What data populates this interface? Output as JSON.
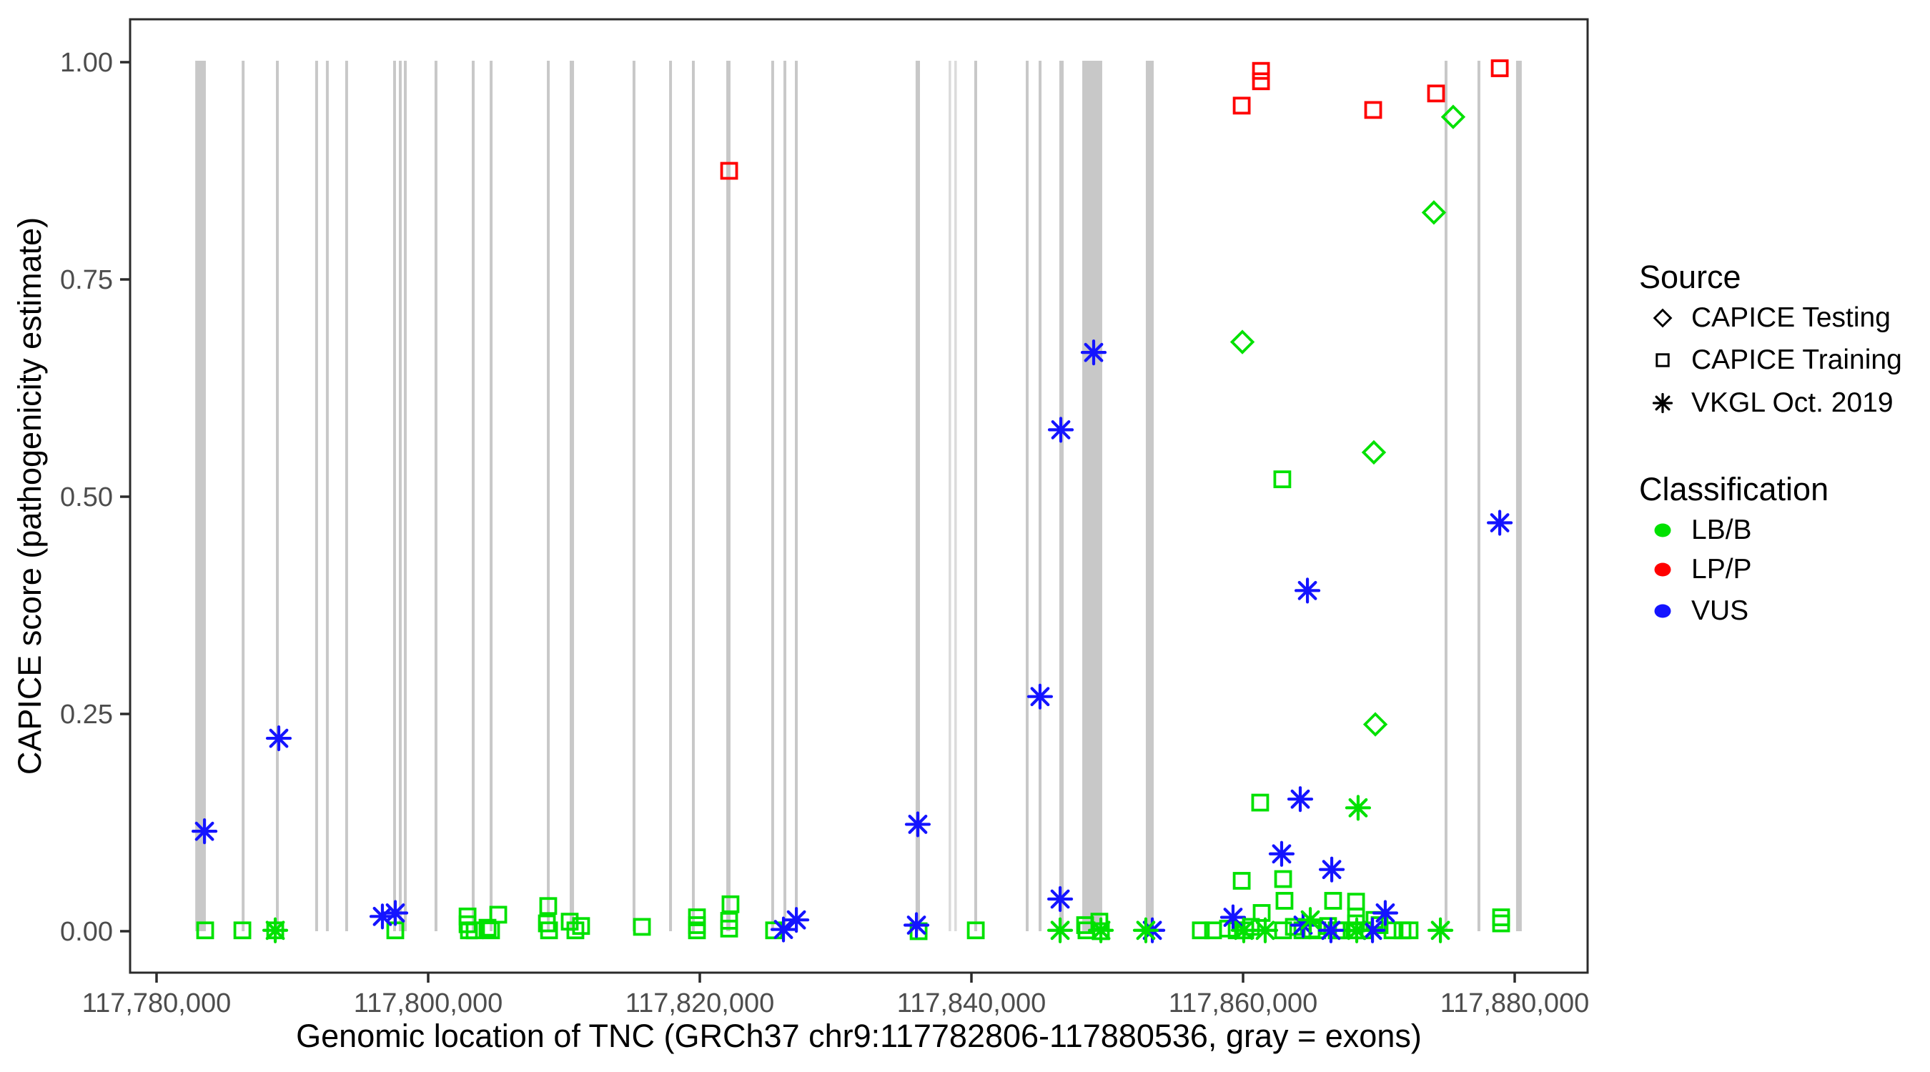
{
  "colors": {
    "lbb_green": "#00E100",
    "lpp_red": "#FF0000",
    "vus_blue": "#1414FF",
    "exon_gray": "#C8C8C8",
    "exon_gray_light": "#DBDBDB",
    "axis_line": "#2B2B2B",
    "tick_text": "#4D4D4D"
  },
  "legend": {
    "source": {
      "title": "Source",
      "items": [
        {
          "label": "CAPICE Testing",
          "marker": "diamond"
        },
        {
          "label": "CAPICE Training",
          "marker": "square"
        },
        {
          "label": "VKGL Oct. 2019",
          "marker": "asterisk"
        }
      ]
    },
    "classification": {
      "title": "Classification",
      "items": [
        {
          "label": "LB/B",
          "color": "#00E100"
        },
        {
          "label": "LP/P",
          "color": "#FF0000"
        },
        {
          "label": "VUS",
          "color": "#1414FF"
        }
      ]
    }
  },
  "chart_data": {
    "type": "scatter",
    "title": "",
    "xlabel": "Genomic location of TNC (GRCh37 chr9:117782806-117880536, gray = exons)",
    "ylabel": "CAPICE score (pathogenicity estimate)",
    "xlim": [
      117778050,
      117885400
    ],
    "ylim": [
      -0.048,
      1.05
    ],
    "grid": false,
    "x_ticks": [
      {
        "value": 117780000,
        "label": "117,780,000"
      },
      {
        "value": 117800000,
        "label": "117,800,000"
      },
      {
        "value": 117820000,
        "label": "117,820,000"
      },
      {
        "value": 117840000,
        "label": "117,840,000"
      },
      {
        "value": 117860000,
        "label": "117,860,000"
      },
      {
        "value": 117880000,
        "label": "117,880,000"
      }
    ],
    "y_ticks": [
      {
        "value": 0.0,
        "label": "0.00"
      },
      {
        "value": 0.25,
        "label": "0.25"
      },
      {
        "value": 0.5,
        "label": "0.50"
      },
      {
        "value": 0.75,
        "label": "0.75"
      },
      {
        "value": 1.0,
        "label": "1.00"
      }
    ],
    "exons_note": "gray vertical bands spanning score 0 to 1",
    "exons": [
      {
        "start": 117782850,
        "end": 117783630
      },
      {
        "start": 117786270,
        "end": 117786480
      },
      {
        "start": 117788790,
        "end": 117789000
      },
      {
        "start": 117791680,
        "end": 117791890
      },
      {
        "start": 117792470,
        "end": 117792680
      },
      {
        "start": 117793890,
        "end": 117794100
      },
      {
        "start": 117797420,
        "end": 117797630
      },
      {
        "start": 117797840,
        "end": 117798050
      },
      {
        "start": 117798210,
        "end": 117798420
      },
      {
        "start": 117800470,
        "end": 117800680
      },
      {
        "start": 117803210,
        "end": 117803420
      },
      {
        "start": 117804530,
        "end": 117804740
      },
      {
        "start": 117808740,
        "end": 117808950
      },
      {
        "start": 117810420,
        "end": 117810740
      },
      {
        "start": 117815050,
        "end": 117815260
      },
      {
        "start": 117817740,
        "end": 117817950
      },
      {
        "start": 117819420,
        "end": 117819630
      },
      {
        "start": 117821950,
        "end": 117822260
      },
      {
        "start": 117825260,
        "end": 117825470
      },
      {
        "start": 117826160,
        "end": 117826370
      },
      {
        "start": 117827000,
        "end": 117827210
      },
      {
        "start": 117835890,
        "end": 117836210
      },
      {
        "start": 117838320,
        "end": 117838430,
        "light": true
      },
      {
        "start": 117838740,
        "end": 117838850,
        "light": true
      },
      {
        "start": 117840210,
        "end": 117840420
      },
      {
        "start": 117844000,
        "end": 117844210
      },
      {
        "start": 117844950,
        "end": 117845160
      },
      {
        "start": 117846470,
        "end": 117846790
      },
      {
        "start": 117848160,
        "end": 117849630
      },
      {
        "start": 117852840,
        "end": 117853420
      },
      {
        "start": 117874840,
        "end": 117875050
      },
      {
        "start": 117877260,
        "end": 117877470
      },
      {
        "start": 117880100,
        "end": 117880520
      }
    ],
    "series": [
      {
        "name": "CAPICE Testing",
        "marker": "diamond",
        "points": [
          {
            "pos": 117859950,
            "score": 0.678,
            "class": "LB/B"
          },
          {
            "pos": 117869630,
            "score": 0.551,
            "class": "LB/B"
          },
          {
            "pos": 117869740,
            "score": 0.238,
            "class": "LB/B"
          },
          {
            "pos": 117874050,
            "score": 0.827,
            "class": "LB/B"
          },
          {
            "pos": 117875470,
            "score": 0.937,
            "class": "LB/B"
          }
        ]
      },
      {
        "name": "CAPICE Training",
        "marker": "square",
        "points": [
          {
            "pos": 117822160,
            "score": 0.875,
            "class": "LP/P"
          },
          {
            "pos": 117859900,
            "score": 0.95,
            "class": "LP/P"
          },
          {
            "pos": 117861320,
            "score": 0.99,
            "class": "LP/P"
          },
          {
            "pos": 117861320,
            "score": 0.978,
            "class": "LP/P"
          },
          {
            "pos": 117869580,
            "score": 0.945,
            "class": "LP/P"
          },
          {
            "pos": 117874210,
            "score": 0.964,
            "class": "LP/P"
          },
          {
            "pos": 117878900,
            "score": 0.993,
            "class": "LP/P"
          },
          {
            "pos": 117783580,
            "score": 0.001,
            "class": "LB/B"
          },
          {
            "pos": 117786320,
            "score": 0.001,
            "class": "LB/B"
          },
          {
            "pos": 117788740,
            "score": 0.001,
            "class": "LB/B"
          },
          {
            "pos": 117797580,
            "score": 0.001,
            "class": "LB/B"
          },
          {
            "pos": 117802900,
            "score": 0.017,
            "class": "LB/B"
          },
          {
            "pos": 117802900,
            "score": 0.008,
            "class": "LB/B"
          },
          {
            "pos": 117803000,
            "score": 0.001,
            "class": "LB/B"
          },
          {
            "pos": 117803420,
            "score": 0.001,
            "class": "LB/B"
          },
          {
            "pos": 117804370,
            "score": 0.004,
            "class": "LB/B"
          },
          {
            "pos": 117804630,
            "score": 0.001,
            "class": "LB/B"
          },
          {
            "pos": 117805160,
            "score": 0.019,
            "class": "LB/B"
          },
          {
            "pos": 117808840,
            "score": 0.029,
            "class": "LB/B"
          },
          {
            "pos": 117808740,
            "score": 0.009,
            "class": "LB/B"
          },
          {
            "pos": 117808900,
            "score": 0.001,
            "class": "LB/B"
          },
          {
            "pos": 117810420,
            "score": 0.011,
            "class": "LB/B"
          },
          {
            "pos": 117810840,
            "score": 0.001,
            "class": "LB/B"
          },
          {
            "pos": 117811260,
            "score": 0.006,
            "class": "LB/B"
          },
          {
            "pos": 117815740,
            "score": 0.005,
            "class": "LB/B"
          },
          {
            "pos": 117819790,
            "score": 0.016,
            "class": "LB/B"
          },
          {
            "pos": 117819790,
            "score": 0.007,
            "class": "LB/B"
          },
          {
            "pos": 117819790,
            "score": 0.001,
            "class": "LB/B"
          },
          {
            "pos": 117822260,
            "score": 0.031,
            "class": "LB/B"
          },
          {
            "pos": 117822160,
            "score": 0.012,
            "class": "LB/B"
          },
          {
            "pos": 117822160,
            "score": 0.003,
            "class": "LB/B"
          },
          {
            "pos": 117825470,
            "score": 0.001,
            "class": "LB/B"
          },
          {
            "pos": 117836110,
            "score": 0.0,
            "class": "LB/B"
          },
          {
            "pos": 117840320,
            "score": 0.001,
            "class": "LB/B"
          },
          {
            "pos": 117848370,
            "score": 0.007,
            "class": "LB/B"
          },
          {
            "pos": 117849420,
            "score": 0.011,
            "class": "LB/B"
          },
          {
            "pos": 117848470,
            "score": 0.001,
            "class": "LB/B"
          },
          {
            "pos": 117849530,
            "score": 0.0,
            "class": "LB/B"
          },
          {
            "pos": 117856890,
            "score": 0.001,
            "class": "LB/B"
          },
          {
            "pos": 117857790,
            "score": 0.001,
            "class": "LB/B"
          },
          {
            "pos": 117858890,
            "score": 0.003,
            "class": "LB/B"
          },
          {
            "pos": 117859530,
            "score": 0.001,
            "class": "LB/B"
          },
          {
            "pos": 117860160,
            "score": 0.001,
            "class": "LB/B"
          },
          {
            "pos": 117860580,
            "score": 0.005,
            "class": "LB/B"
          },
          {
            "pos": 117859900,
            "score": 0.058,
            "class": "LB/B"
          },
          {
            "pos": 117861260,
            "score": 0.148,
            "class": "LB/B"
          },
          {
            "pos": 117861370,
            "score": 0.021,
            "class": "LB/B"
          },
          {
            "pos": 117862890,
            "score": 0.52,
            "class": "LB/B"
          },
          {
            "pos": 117862950,
            "score": 0.06,
            "class": "LB/B"
          },
          {
            "pos": 117863050,
            "score": 0.035,
            "class": "LB/B"
          },
          {
            "pos": 117862950,
            "score": 0.001,
            "class": "LB/B"
          },
          {
            "pos": 117863740,
            "score": 0.005,
            "class": "LB/B"
          },
          {
            "pos": 117864370,
            "score": 0.001,
            "class": "LB/B"
          },
          {
            "pos": 117865050,
            "score": 0.002,
            "class": "LB/B"
          },
          {
            "pos": 117865470,
            "score": 0.001,
            "class": "LB/B"
          },
          {
            "pos": 117866260,
            "score": 0.006,
            "class": "LB/B"
          },
          {
            "pos": 117866890,
            "score": 0.001,
            "class": "LB/B"
          },
          {
            "pos": 117867260,
            "score": 0.001,
            "class": "LB/B"
          },
          {
            "pos": 117866630,
            "score": 0.035,
            "class": "LB/B"
          },
          {
            "pos": 117868320,
            "score": 0.034,
            "class": "LB/B"
          },
          {
            "pos": 117868320,
            "score": 0.017,
            "class": "LB/B"
          },
          {
            "pos": 117868320,
            "score": 0.009,
            "class": "LB/B"
          },
          {
            "pos": 117868210,
            "score": 0.001,
            "class": "LB/B"
          },
          {
            "pos": 117868890,
            "score": 0.001,
            "class": "LB/B"
          },
          {
            "pos": 117869680,
            "score": 0.013,
            "class": "LB/B"
          },
          {
            "pos": 117870050,
            "score": 0.007,
            "class": "LB/B"
          },
          {
            "pos": 117871000,
            "score": 0.001,
            "class": "LB/B"
          },
          {
            "pos": 117871740,
            "score": 0.001,
            "class": "LB/B"
          },
          {
            "pos": 117872260,
            "score": 0.001,
            "class": "LB/B"
          },
          {
            "pos": 117879000,
            "score": 0.016,
            "class": "LB/B"
          },
          {
            "pos": 117879000,
            "score": 0.009,
            "class": "LB/B"
          }
        ]
      },
      {
        "name": "VKGL Oct. 2019",
        "marker": "asterisk",
        "points": [
          {
            "pos": 117783530,
            "score": 0.115,
            "class": "VUS"
          },
          {
            "pos": 117789000,
            "score": 0.222,
            "class": "VUS"
          },
          {
            "pos": 117796630,
            "score": 0.017,
            "class": "VUS"
          },
          {
            "pos": 117797580,
            "score": 0.021,
            "class": "VUS"
          },
          {
            "pos": 117826160,
            "score": 0.002,
            "class": "VUS"
          },
          {
            "pos": 117827110,
            "score": 0.013,
            "class": "VUS"
          },
          {
            "pos": 117835950,
            "score": 0.007,
            "class": "VUS"
          },
          {
            "pos": 117836050,
            "score": 0.123,
            "class": "VUS"
          },
          {
            "pos": 117845050,
            "score": 0.27,
            "class": "VUS"
          },
          {
            "pos": 117846530,
            "score": 0.037,
            "class": "VUS"
          },
          {
            "pos": 117846580,
            "score": 0.577,
            "class": "VUS"
          },
          {
            "pos": 117849000,
            "score": 0.666,
            "class": "VUS"
          },
          {
            "pos": 117853320,
            "score": 0.001,
            "class": "VUS"
          },
          {
            "pos": 117859260,
            "score": 0.016,
            "class": "VUS"
          },
          {
            "pos": 117862840,
            "score": 0.089,
            "class": "VUS"
          },
          {
            "pos": 117864210,
            "score": 0.152,
            "class": "VUS"
          },
          {
            "pos": 117864420,
            "score": 0.007,
            "class": "VUS"
          },
          {
            "pos": 117864740,
            "score": 0.392,
            "class": "VUS"
          },
          {
            "pos": 117866470,
            "score": 0.001,
            "class": "VUS"
          },
          {
            "pos": 117866530,
            "score": 0.071,
            "class": "VUS"
          },
          {
            "pos": 117869530,
            "score": 0.001,
            "class": "VUS"
          },
          {
            "pos": 117870470,
            "score": 0.021,
            "class": "VUS"
          },
          {
            "pos": 117878900,
            "score": 0.47,
            "class": "VUS"
          },
          {
            "pos": 117788740,
            "score": 0.001,
            "class": "LB/B"
          },
          {
            "pos": 117846530,
            "score": 0.001,
            "class": "LB/B"
          },
          {
            "pos": 117849530,
            "score": 0.001,
            "class": "LB/B"
          },
          {
            "pos": 117852840,
            "score": 0.001,
            "class": "LB/B"
          },
          {
            "pos": 117860050,
            "score": 0.001,
            "class": "LB/B"
          },
          {
            "pos": 117861630,
            "score": 0.001,
            "class": "LB/B"
          },
          {
            "pos": 117864950,
            "score": 0.013,
            "class": "LB/B"
          },
          {
            "pos": 117868370,
            "score": 0.001,
            "class": "LB/B"
          },
          {
            "pos": 117868470,
            "score": 0.142,
            "class": "LB/B"
          },
          {
            "pos": 117874530,
            "score": 0.001,
            "class": "LB/B"
          }
        ]
      }
    ]
  }
}
